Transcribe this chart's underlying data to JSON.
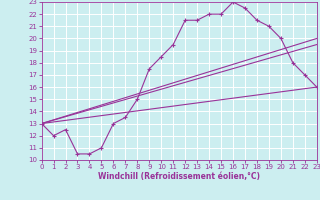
{
  "xlabel": "Windchill (Refroidissement éolien,°C)",
  "xlim": [
    0,
    23
  ],
  "ylim": [
    10,
    23
  ],
  "xticks": [
    0,
    1,
    2,
    3,
    4,
    5,
    6,
    7,
    8,
    9,
    10,
    11,
    12,
    13,
    14,
    15,
    16,
    17,
    18,
    19,
    20,
    21,
    22,
    23
  ],
  "yticks": [
    10,
    11,
    12,
    13,
    14,
    15,
    16,
    17,
    18,
    19,
    20,
    21,
    22,
    23
  ],
  "bg_color": "#cceef0",
  "line_color": "#993399",
  "grid_color": "#aadddd",
  "curve_x": [
    0,
    1,
    2,
    3,
    4,
    5,
    6,
    7,
    8,
    9,
    10,
    11,
    12,
    13,
    14,
    15,
    16,
    17,
    18,
    19,
    20,
    21,
    22,
    23
  ],
  "curve_y": [
    13,
    12,
    12.5,
    10.5,
    10.5,
    11,
    13,
    13.5,
    15,
    17.5,
    18.5,
    19.5,
    21.5,
    21.5,
    22,
    22,
    23,
    22.5,
    21.5,
    21,
    20,
    18,
    17,
    16
  ],
  "line1_x": [
    0,
    23
  ],
  "line1_y": [
    13,
    20
  ],
  "line2_x": [
    0,
    23
  ],
  "line2_y": [
    13,
    16
  ],
  "line3_x": [
    0,
    23
  ],
  "line3_y": [
    13,
    19.5
  ],
  "xlabel_fontsize": 5.5,
  "tick_fontsize": 5.0
}
